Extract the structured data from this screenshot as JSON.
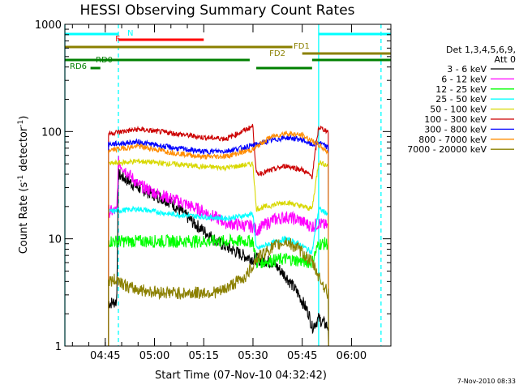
{
  "chart_data": {
    "type": "line",
    "title": "HESSI Observing Summary Count Rates",
    "xlabel": "Start Time (07-Nov-10 04:32:42)",
    "ylabel_main": "Count Rate (s",
    "ylabel_sup1": "-1",
    "ylabel_mid": " detector",
    "ylabel_sup2": "-1",
    "ylabel_end": ")",
    "y_scale": "log",
    "ylim": [
      1,
      1000
    ],
    "xlim": [
      "04:32:42",
      "06:12:00"
    ],
    "x_ticks": [
      "04:45",
      "05:00",
      "05:15",
      "05:30",
      "05:45",
      "06:00"
    ],
    "y_ticks": [
      "1",
      "10",
      "100",
      "1000"
    ],
    "grid": false,
    "legend_placement": "right",
    "legend_header": [
      "Det 1,3,4,5,6,9,",
      "Att 0"
    ],
    "timestamp": "7-Nov-2010 08:33",
    "series": [
      {
        "name": "3 - 6 keV",
        "color": "#000000",
        "points": [
          [
            "04:46:00",
            2.5
          ],
          [
            "04:48:30",
            2.6
          ],
          [
            "04:49:00",
            40
          ],
          [
            "04:55:00",
            30
          ],
          [
            "05:05:00",
            22
          ],
          [
            "05:12:00",
            14
          ],
          [
            "05:20:00",
            9
          ],
          [
            "05:27:00",
            7
          ],
          [
            "05:30:00",
            6.5
          ],
          [
            "05:31:00",
            6.5
          ],
          [
            "05:36:00",
            6
          ],
          [
            "05:40:00",
            4.5
          ],
          [
            "05:44:00",
            3
          ],
          [
            "05:47:00",
            2
          ],
          [
            "05:48:00",
            1.5
          ],
          [
            "05:50:00",
            1.8
          ],
          [
            "05:53:00",
            1.5
          ]
        ]
      },
      {
        "name": "6 - 12 keV",
        "color": "#ff00ff",
        "points": [
          [
            "04:46:00",
            18
          ],
          [
            "04:48:30",
            18
          ],
          [
            "04:49:00",
            52
          ],
          [
            "04:55:00",
            32
          ],
          [
            "05:00:00",
            27
          ],
          [
            "05:08:00",
            22
          ],
          [
            "05:15:00",
            18
          ],
          [
            "05:22:00",
            14
          ],
          [
            "05:30:00",
            13
          ],
          [
            "05:31:00",
            12
          ],
          [
            "05:36:00",
            15
          ],
          [
            "05:40:00",
            16
          ],
          [
            "05:44:00",
            15
          ],
          [
            "05:48:00",
            13
          ],
          [
            "05:50:00",
            14
          ],
          [
            "05:53:00",
            13
          ]
        ]
      },
      {
        "name": "12 - 25 keV",
        "color": "#00ff00",
        "points": [
          [
            "04:46:00",
            9.5
          ],
          [
            "04:55:00",
            9.5
          ],
          [
            "05:10:00",
            9.5
          ],
          [
            "05:25:00",
            9.5
          ],
          [
            "05:30:00",
            9.5
          ],
          [
            "05:31:00",
            6
          ],
          [
            "05:40:00",
            6.5
          ],
          [
            "05:48:00",
            6
          ],
          [
            "05:50:00",
            9
          ],
          [
            "05:53:00",
            9
          ]
        ]
      },
      {
        "name": "25 - 50 keV",
        "color": "#00ffff",
        "points": [
          [
            "04:46:00",
            18
          ],
          [
            "04:55:00",
            19
          ],
          [
            "05:05:00",
            17
          ],
          [
            "05:15:00",
            16
          ],
          [
            "05:22:00",
            15.5
          ],
          [
            "05:30:00",
            17
          ],
          [
            "05:31:00",
            8
          ],
          [
            "05:35:00",
            9
          ],
          [
            "05:40:00",
            10
          ],
          [
            "05:44:00",
            9
          ],
          [
            "05:48:00",
            7.5
          ],
          [
            "05:50:00",
            19
          ],
          [
            "05:53:00",
            17
          ]
        ]
      },
      {
        "name": "50 - 100 keV",
        "color": "#d8d800",
        "points": [
          [
            "04:46:00",
            50
          ],
          [
            "04:55:00",
            53
          ],
          [
            "05:05:00",
            50
          ],
          [
            "05:15:00",
            47
          ],
          [
            "05:22:00",
            46
          ],
          [
            "05:30:00",
            50
          ],
          [
            "05:31:00",
            19
          ],
          [
            "05:40:00",
            22
          ],
          [
            "05:48:00",
            19
          ],
          [
            "05:50:00",
            52
          ],
          [
            "05:53:00",
            48
          ]
        ]
      },
      {
        "name": "100 - 300 keV",
        "color": "#cc0000",
        "points": [
          [
            "04:46:00",
            96
          ],
          [
            "04:55:00",
            105
          ],
          [
            "05:05:00",
            97
          ],
          [
            "05:15:00",
            88
          ],
          [
            "05:22:00",
            86
          ],
          [
            "05:30:00",
            112
          ],
          [
            "05:31:00",
            40
          ],
          [
            "05:35:00",
            43
          ],
          [
            "05:40:00",
            48
          ],
          [
            "05:45:00",
            44
          ],
          [
            "05:48:00",
            38
          ],
          [
            "05:50:00",
            110
          ],
          [
            "05:53:00",
            100
          ]
        ]
      },
      {
        "name": "300 - 800 keV",
        "color": "#0000ff",
        "points": [
          [
            "04:46:00",
            76
          ],
          [
            "04:55:00",
            80
          ],
          [
            "05:05:00",
            71
          ],
          [
            "05:15:00",
            65
          ],
          [
            "05:22:00",
            66
          ],
          [
            "05:30:00",
            74
          ],
          [
            "05:35:00",
            82
          ],
          [
            "05:40:00",
            88
          ],
          [
            "05:45:00",
            84
          ],
          [
            "05:48:00",
            75
          ],
          [
            "05:50:00",
            80
          ],
          [
            "05:53:00",
            70
          ]
        ]
      },
      {
        "name": "800 - 7000 keV",
        "color": "#ff8c00",
        "points": [
          [
            "04:46:00",
            67
          ],
          [
            "04:55:00",
            73
          ],
          [
            "05:05:00",
            64
          ],
          [
            "05:15:00",
            58
          ],
          [
            "05:22:00",
            59
          ],
          [
            "05:30:00",
            68
          ],
          [
            "05:35:00",
            88
          ],
          [
            "05:40:00",
            97
          ],
          [
            "05:45:00",
            92
          ],
          [
            "05:48:00",
            82
          ],
          [
            "05:50:00",
            75
          ],
          [
            "05:53:00",
            64
          ]
        ]
      },
      {
        "name": "7000 - 20000 keV",
        "color": "#8b8000",
        "points": [
          [
            "04:46:00",
            4
          ],
          [
            "04:49:00",
            4.2
          ],
          [
            "04:52:00",
            3.5
          ],
          [
            "05:00:00",
            3.2
          ],
          [
            "05:10:00",
            3.1
          ],
          [
            "05:20:00",
            3.2
          ],
          [
            "05:28:00",
            4.5
          ],
          [
            "05:31:00",
            6.5
          ],
          [
            "05:35:00",
            8
          ],
          [
            "05:40:00",
            9.5
          ],
          [
            "05:44:00",
            8
          ],
          [
            "05:48:00",
            6
          ],
          [
            "05:50:00",
            4.5
          ],
          [
            "05:53:00",
            3
          ]
        ]
      }
    ],
    "flags": [
      {
        "label": "N",
        "color": "#00ffff",
        "segments": [
          [
            "04:32:42",
            "04:49:00"
          ],
          [
            "05:50:00",
            "06:12:00"
          ]
        ]
      },
      {
        "label": "F",
        "color": "#ff0000",
        "segments": [
          [
            "04:49:00",
            "05:15:00"
          ]
        ]
      },
      {
        "label": "FD1",
        "color": "#8b8000",
        "segments": [
          [
            "04:32:42",
            "05:42:00"
          ]
        ]
      },
      {
        "label": "FD2",
        "color": "#8b8000",
        "segments": [
          [
            "05:45:00",
            "06:12:00"
          ]
        ]
      },
      {
        "label": "RD0",
        "color": "#008000",
        "segments": [
          [
            "04:32:42",
            "05:29:00"
          ],
          [
            "05:48:00",
            "06:12:00"
          ]
        ]
      },
      {
        "label": "RD6",
        "color": "#008000",
        "segments": [
          [
            "04:40:30",
            "04:43:30"
          ],
          [
            "05:31:00",
            "05:48:00"
          ]
        ]
      }
    ],
    "vlines": [
      {
        "color": "#00ffff",
        "style": "solid",
        "times": [
          "04:32:42",
          "05:50:00"
        ]
      },
      {
        "color": "#00ffff",
        "style": "dashed",
        "times": [
          "04:49:00",
          "06:09:00"
        ]
      }
    ]
  }
}
